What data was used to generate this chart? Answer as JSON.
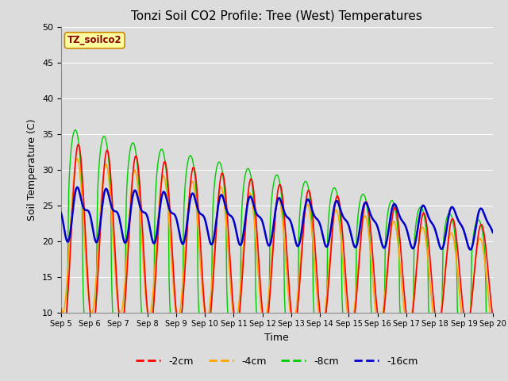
{
  "title": "Tonzi Soil CO2 Profile: Tree (West) Temperatures",
  "xlabel": "Time",
  "ylabel": "Soil Temperature (C)",
  "ylim": [
    10,
    50
  ],
  "legend_label": "TZ_soilco2",
  "series_labels": [
    "-2cm",
    "-4cm",
    "-8cm",
    "-16cm"
  ],
  "series_colors": [
    "#ff0000",
    "#ffa500",
    "#00cc00",
    "#0000cc"
  ],
  "x_tick_labels": [
    "Sep 5",
    "Sep 6",
    "Sep 7",
    "Sep 8",
    "Sep 9",
    "Sep 10",
    "Sep 11",
    "Sep 12",
    "Sep 13",
    "Sep 14",
    "Sep 15",
    "Sep 16",
    "Sep 17",
    "Sep 18",
    "Sep 19",
    "Sep 20"
  ],
  "yticks": [
    10,
    15,
    20,
    25,
    30,
    35,
    40,
    45,
    50
  ],
  "background_color": "#dcdcdc",
  "plot_bg_color": "#dcdcdc"
}
